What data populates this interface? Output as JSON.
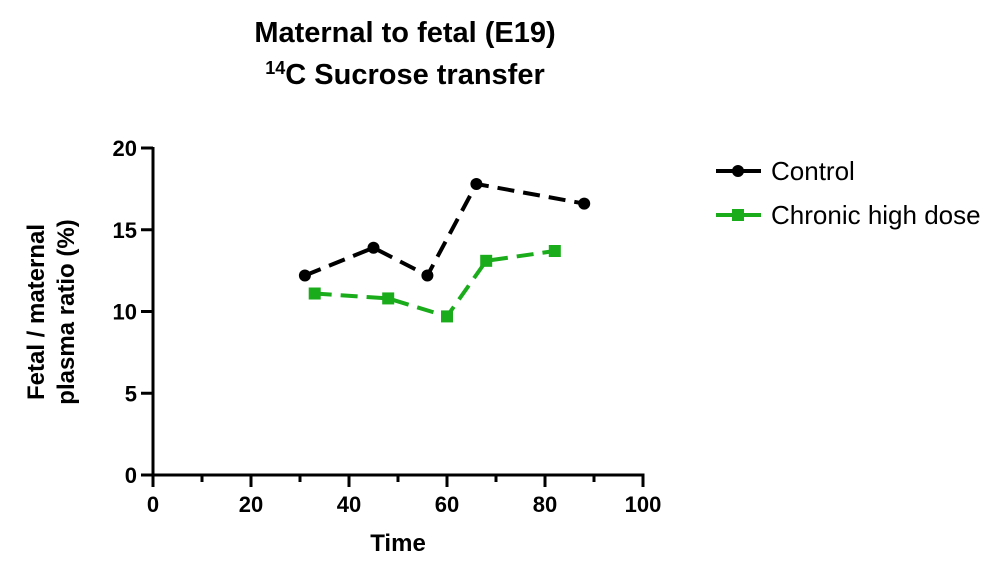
{
  "chart_data": {
    "type": "line",
    "title": {
      "line1": "Maternal to fetal (E19)",
      "line2_superscript": "14",
      "line2_rest": "C Sucrose transfer"
    },
    "xlabel": "Time",
    "ylabel_line1": "Fetal / maternal",
    "ylabel_line2": "plasma ratio (%)",
    "xlim": [
      0,
      100
    ],
    "ylim": [
      0,
      20
    ],
    "x_ticks": [
      0,
      20,
      40,
      60,
      80,
      100
    ],
    "x_minor_ticks": [
      10,
      30,
      50,
      70,
      90
    ],
    "y_ticks": [
      0,
      5,
      10,
      15,
      20
    ],
    "grid": false,
    "legend_placement": "right-top",
    "series": [
      {
        "name": "Control",
        "color": "#000000",
        "marker": "circle",
        "line_style": "dashed",
        "x": [
          31,
          45,
          56,
          66,
          88
        ],
        "y": [
          12.2,
          13.9,
          12.2,
          17.8,
          16.6
        ]
      },
      {
        "name": "Chronic high dose",
        "color": "#1aac1a",
        "marker": "square",
        "line_style": "dashed",
        "x": [
          33,
          48,
          60,
          68,
          82
        ],
        "y": [
          11.1,
          10.8,
          9.7,
          13.1,
          13.7
        ]
      }
    ]
  }
}
